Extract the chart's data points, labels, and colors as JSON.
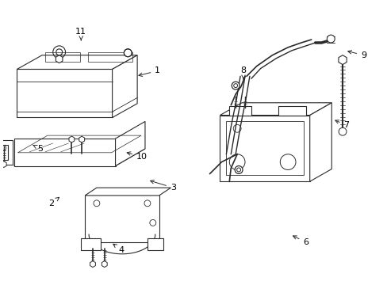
{
  "background_color": "#ffffff",
  "line_color": "#2a2a2a",
  "label_color": "#000000",
  "figsize": [
    4.89,
    3.6
  ],
  "dpi": 100,
  "label_data": [
    [
      "1",
      198,
      88,
      170,
      95
    ],
    [
      "2",
      62,
      258,
      75,
      248
    ],
    [
      "3",
      218,
      238,
      185,
      228
    ],
    [
      "4",
      152,
      318,
      138,
      308
    ],
    [
      "5",
      48,
      188,
      38,
      183
    ],
    [
      "6",
      388,
      308,
      368,
      298
    ],
    [
      "7",
      440,
      158,
      422,
      150
    ],
    [
      "8",
      308,
      88,
      308,
      102
    ],
    [
      "9",
      462,
      68,
      438,
      62
    ],
    [
      "10",
      178,
      198,
      155,
      192
    ],
    [
      "11",
      100,
      38,
      100,
      52
    ]
  ]
}
